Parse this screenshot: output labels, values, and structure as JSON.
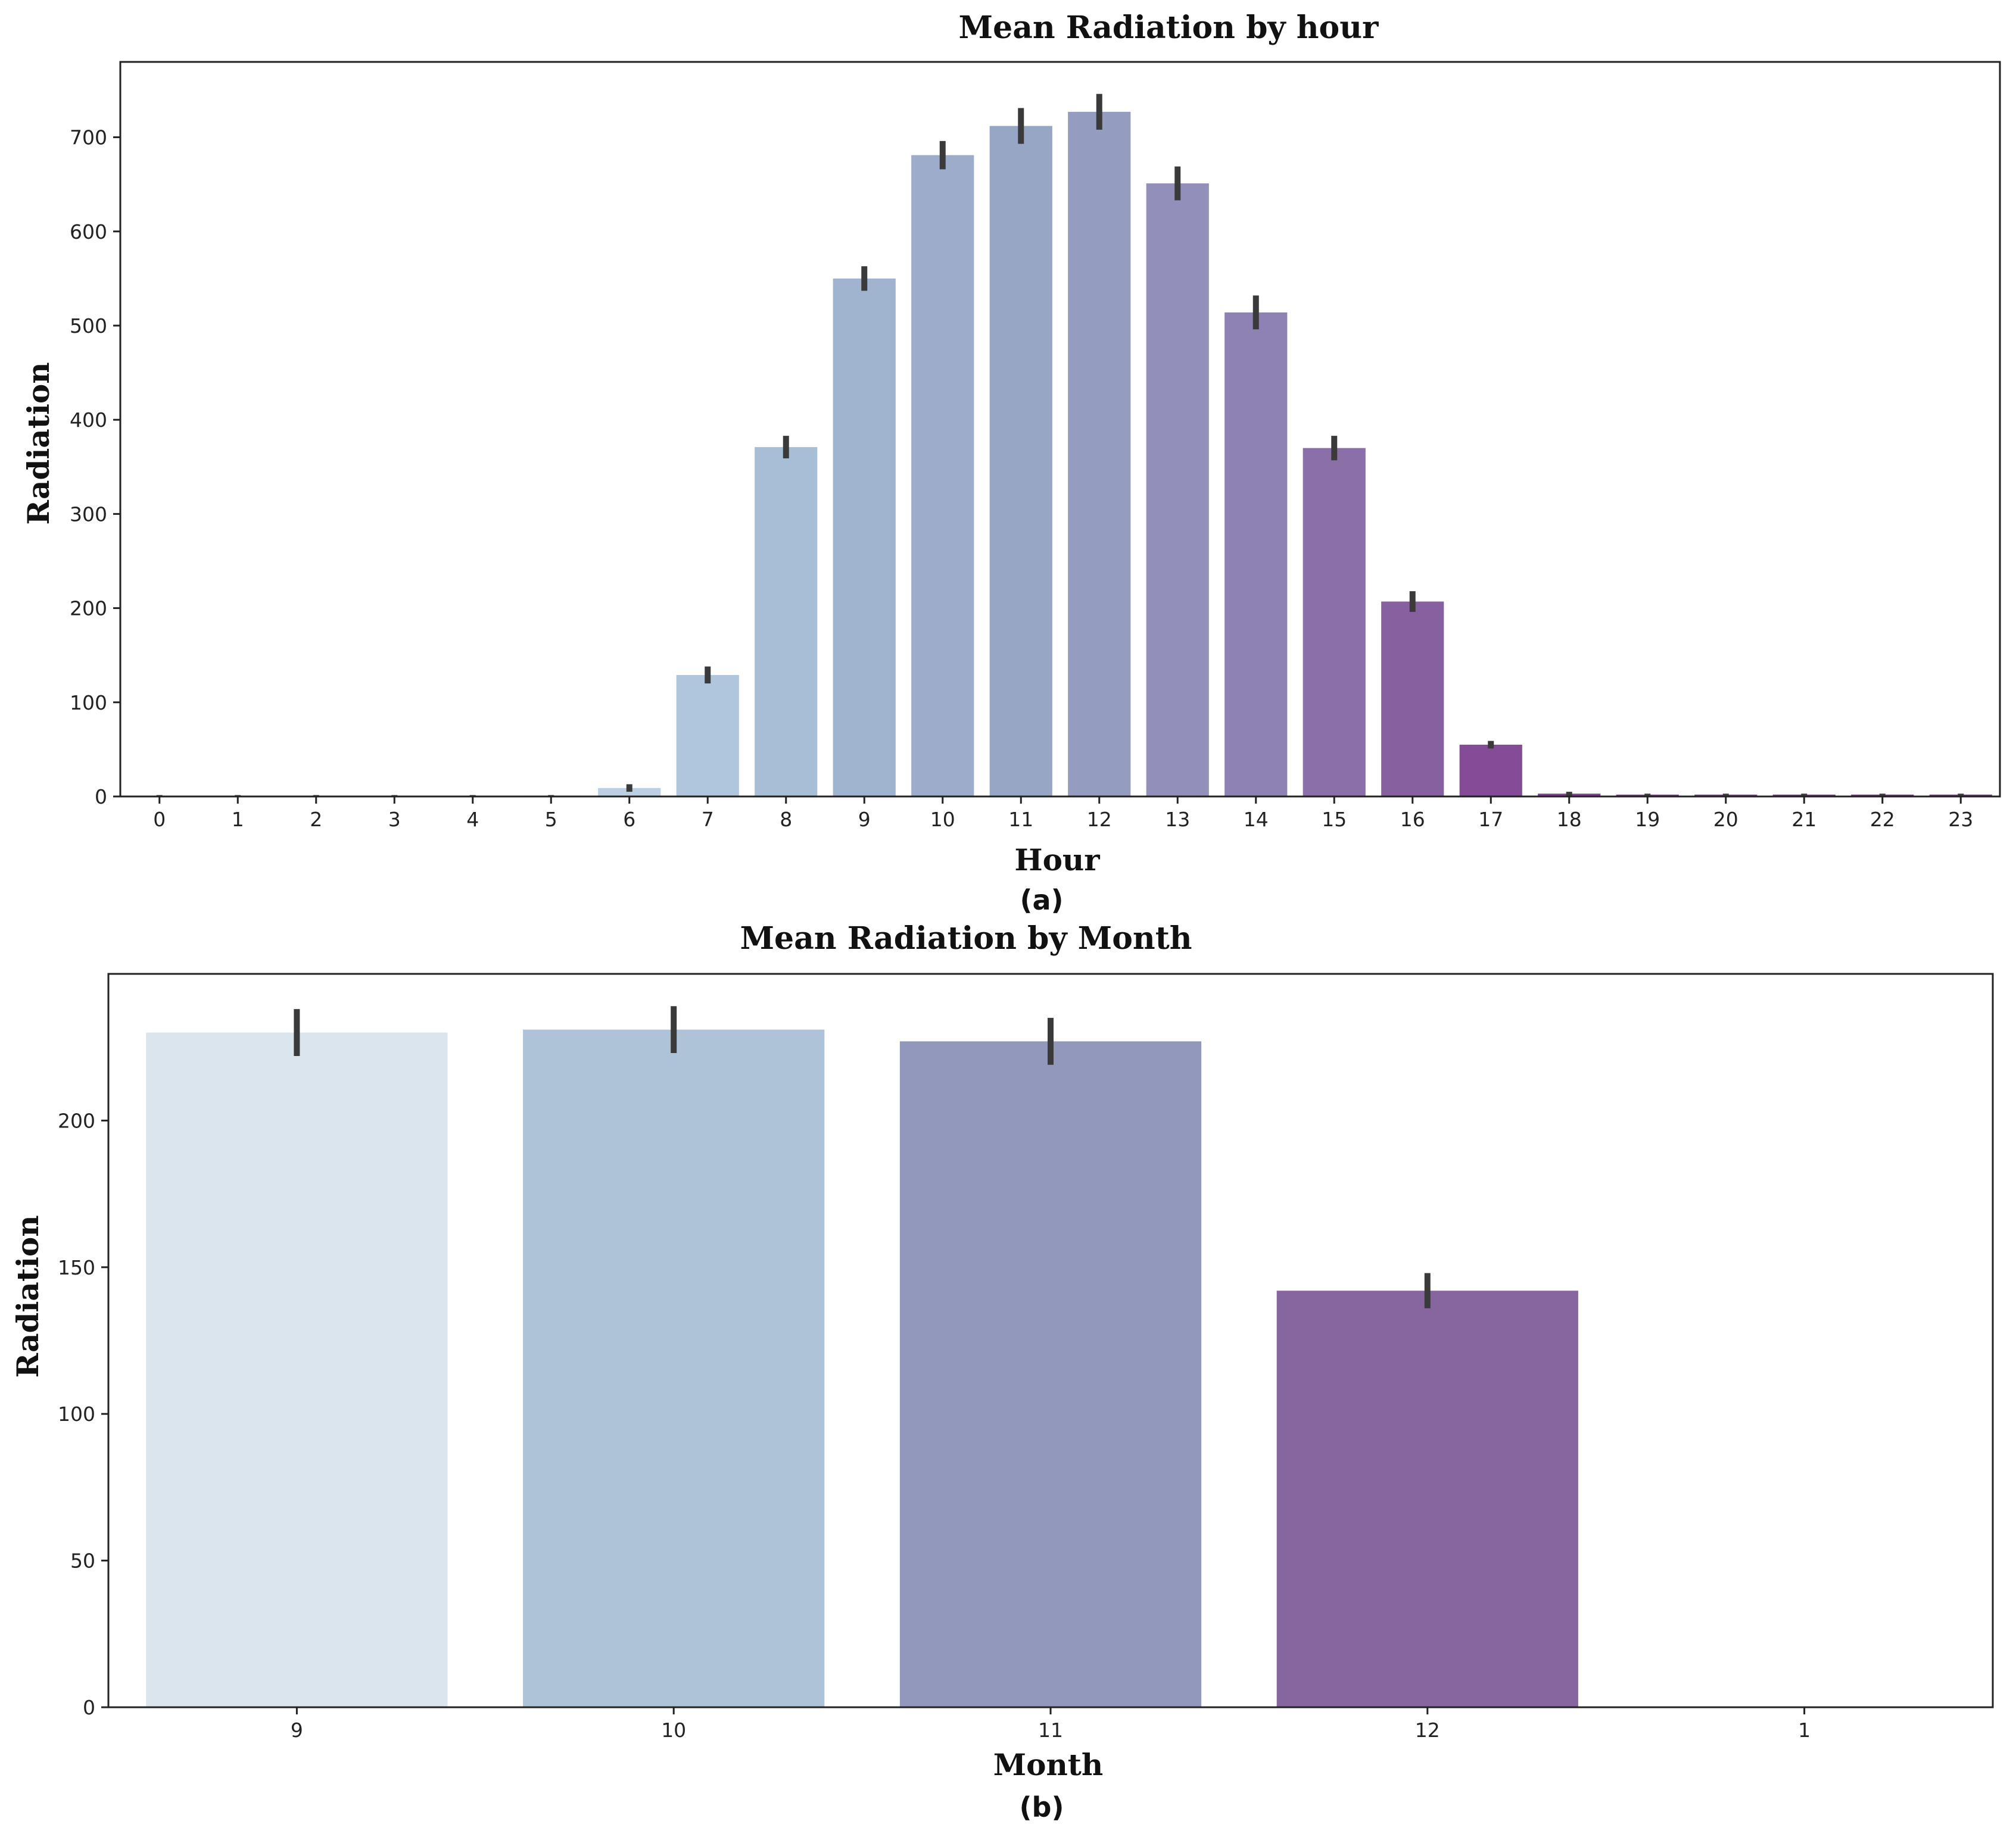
{
  "chart_data": [
    {
      "type": "bar",
      "panel_label": "(a)",
      "title": "Mean Radiation by hour",
      "xlabel": "Hour",
      "ylabel": "Radiation",
      "categories": [
        "0",
        "1",
        "2",
        "3",
        "4",
        "5",
        "6",
        "7",
        "8",
        "9",
        "10",
        "11",
        "12",
        "13",
        "14",
        "15",
        "16",
        "17",
        "18",
        "19",
        "20",
        "21",
        "22",
        "23"
      ],
      "values": [
        1,
        1,
        1,
        1,
        1,
        1,
        9,
        129,
        371,
        550,
        681,
        712,
        727,
        651,
        514,
        370,
        207,
        55,
        3,
        2,
        2,
        2,
        2,
        2
      ],
      "errors": [
        0.5,
        0.5,
        0.5,
        0.5,
        0.5,
        0.5,
        4,
        9,
        12,
        13,
        15,
        19,
        19,
        18,
        18,
        13,
        11,
        4,
        2,
        1,
        1,
        1,
        1,
        1
      ],
      "colors": [
        "#d8e4ee",
        "#d6e2ed",
        "#d3e0eb",
        "#d0deea",
        "#cddce8",
        "#cad9e7",
        "#bdcfe2",
        "#b0c6dc",
        "#a6bed6",
        "#a0b3cf",
        "#9cacca",
        "#98a6c6",
        "#949dc0",
        "#9290bb",
        "#8e81b3",
        "#8a6fa9",
        "#86609f",
        "#844b97",
        "#7f3e90",
        "#7d3b8f",
        "#7c388e",
        "#7b358d",
        "#7a338c",
        "#79308b"
      ],
      "yticks": [
        0,
        100,
        200,
        300,
        400,
        500,
        600,
        700
      ],
      "ylim": [
        0,
        780
      ],
      "grid": false
    },
    {
      "type": "bar",
      "panel_label": "(b)",
      "title": "Mean Radiation by Month",
      "xlabel": "Month",
      "ylabel": "Radiation",
      "categories": [
        "9",
        "10",
        "11",
        "12",
        "1"
      ],
      "values": [
        230,
        231,
        227,
        142,
        0
      ],
      "errors": [
        8,
        8,
        8,
        6,
        0
      ],
      "colors": [
        "#dae5ee",
        "#aec3d8",
        "#9297bc",
        "#8766a0",
        "#7b3a8d"
      ],
      "yticks": [
        0,
        50,
        100,
        150,
        200
      ],
      "ylim": [
        0,
        250
      ],
      "grid": false
    }
  ]
}
